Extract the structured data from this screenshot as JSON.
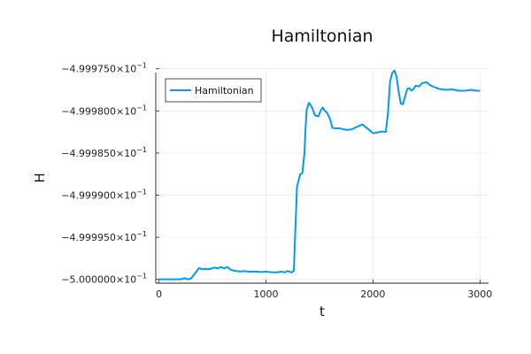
{
  "chart_data": {
    "type": "line",
    "title": "Hamiltonian",
    "xlabel": "t",
    "ylabel": "H",
    "xlim": [
      -30,
      3080
    ],
    "ylim": [
      -0.50000045,
      -0.49997545
    ],
    "x_ticks": [
      {
        "value": 0,
        "label": "0"
      },
      {
        "value": 1000,
        "label": "1000"
      },
      {
        "value": 2000,
        "label": "2000"
      },
      {
        "value": 3000,
        "label": "3000"
      }
    ],
    "y_ticks": [
      {
        "value": -0.499975,
        "mantissa": "−4.999750",
        "exponent": "−1"
      },
      {
        "value": -0.49998,
        "mantissa": "−4.999800",
        "exponent": "−1"
      },
      {
        "value": -0.499985,
        "mantissa": "−4.999850",
        "exponent": "−1"
      },
      {
        "value": -0.49999,
        "mantissa": "−4.999900",
        "exponent": "−1"
      },
      {
        "value": -0.499995,
        "mantissa": "−4.999950",
        "exponent": "−1"
      },
      {
        "value": -0.5,
        "mantissa": "−5.000000",
        "exponent": "−1"
      }
    ],
    "grid": true,
    "legend_position": "top-left",
    "series": [
      {
        "name": "Hamiltonian",
        "color": "#009AFA",
        "x": [
          0,
          100,
          200,
          240,
          270,
          300,
          330,
          370,
          380,
          400,
          430,
          460,
          490,
          520,
          550,
          580,
          610,
          640,
          670,
          700,
          750,
          800,
          850,
          900,
          950,
          1000,
          1050,
          1100,
          1150,
          1180,
          1200,
          1220,
          1240,
          1260,
          1290,
          1320,
          1340,
          1360,
          1370,
          1380,
          1390,
          1400,
          1410,
          1430,
          1460,
          1490,
          1510,
          1530,
          1550,
          1570,
          1600,
          1620,
          1640,
          1700,
          1750,
          1800,
          1850,
          1900,
          1950,
          2000,
          2030,
          2060,
          2090,
          2120,
          2140,
          2160,
          2180,
          2200,
          2220,
          2240,
          2260,
          2280,
          2300,
          2320,
          2340,
          2360,
          2380,
          2400,
          2430,
          2460,
          2500,
          2540,
          2580,
          2620,
          2680,
          2740,
          2800,
          2860,
          2920,
          2960,
          3000
        ],
        "y": [
          -0.49999999,
          -0.49999999,
          -0.49999999,
          -0.49999986,
          -0.49999999,
          -0.49999989,
          -0.4999994,
          -0.49999872,
          -0.49999866,
          -0.49999879,
          -0.49999876,
          -0.4999988,
          -0.49999872,
          -0.4999986,
          -0.49999869,
          -0.49999854,
          -0.49999869,
          -0.49999852,
          -0.49999886,
          -0.49999896,
          -0.49999906,
          -0.49999902,
          -0.4999991,
          -0.49999906,
          -0.49999912,
          -0.49999908,
          -0.49999915,
          -0.49999916,
          -0.49999909,
          -0.49999917,
          -0.499999,
          -0.49999908,
          -0.49999919,
          -0.499999,
          -0.499989,
          -0.4999875,
          -0.4999874,
          -0.499985,
          -0.499982,
          -0.4999799,
          -0.4999795,
          -0.49997905,
          -0.49997915,
          -0.4999796,
          -0.49998055,
          -0.49998065,
          -0.49998,
          -0.4999796,
          -0.49998,
          -0.4999802,
          -0.499981,
          -0.499982,
          -0.49998205,
          -0.4999821,
          -0.49998225,
          -0.4999822,
          -0.4999819,
          -0.4999816,
          -0.4999821,
          -0.49998265,
          -0.4999826,
          -0.4999825,
          -0.49998245,
          -0.4999825,
          -0.4999803,
          -0.4999765,
          -0.4999755,
          -0.4999752,
          -0.4999759,
          -0.4999777,
          -0.49997915,
          -0.4999792,
          -0.4999783,
          -0.4999774,
          -0.4999773,
          -0.4999776,
          -0.4999774,
          -0.499977,
          -0.4999771,
          -0.4999767,
          -0.4999766,
          -0.499977,
          -0.4999772,
          -0.4999774,
          -0.4999775,
          -0.49997745,
          -0.4999776,
          -0.4999776,
          -0.4999775,
          -0.4999776,
          -0.4999776
        ]
      }
    ]
  }
}
